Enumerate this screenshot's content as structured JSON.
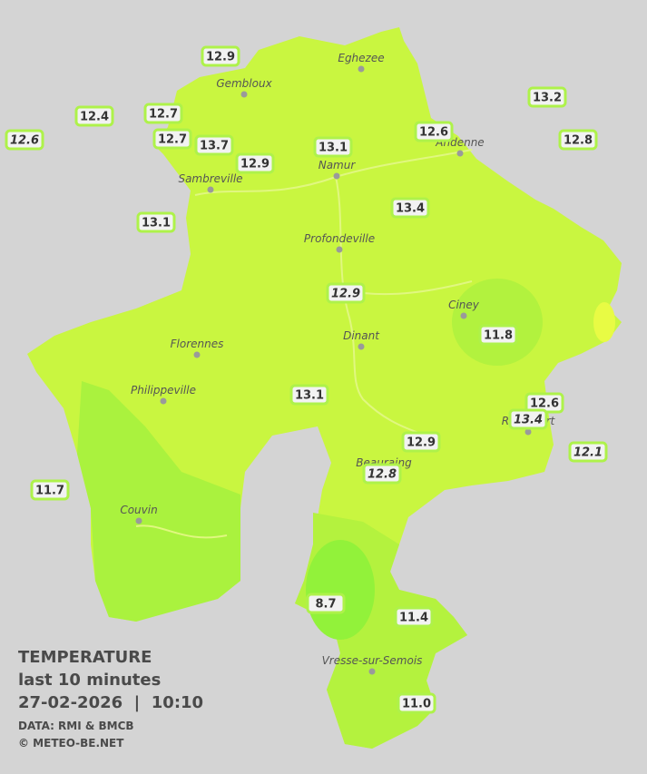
{
  "legend": {
    "title": "TEMPERATURE",
    "subtitle": "last 10 minutes",
    "datetime": "27-02-2026  |  10:10",
    "source": "DATA: RMI & BMCB",
    "copyright": "© METEO-BE.NET"
  },
  "cities": [
    "Eghezee",
    "Gembloux",
    "Andenne",
    "Namur",
    "Sambreville",
    "Profondeville",
    "Ciney",
    "Dinant",
    "Florennes",
    "Philippeville",
    "Rochefort",
    "Beauraing",
    "Couvin",
    "Vresse-sur-Semois"
  ],
  "stations": [
    "12.9",
    "12.4",
    "12.6",
    "12.7",
    "12.7",
    "13.7",
    "12.9",
    "13.1",
    "12.6",
    "13.2",
    "12.8",
    "13.4",
    "13.1",
    "12.9",
    "11.8",
    "13.1",
    "12.6",
    "13.4",
    "12.1",
    "12.9",
    "12.8",
    "11.7",
    "8.7",
    "11.4",
    "11.0"
  ]
}
